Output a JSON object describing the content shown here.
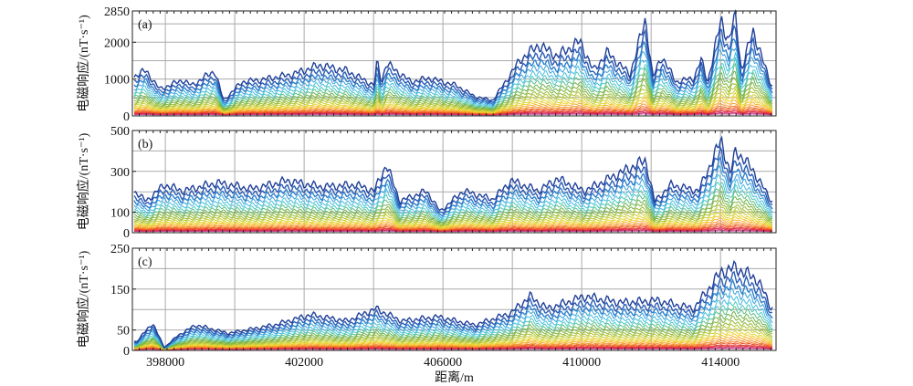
{
  "chart_data": [
    {
      "panel_label": "(a)",
      "type": "line",
      "ylabel": "电磁响应/(nT·s⁻¹)",
      "ylim": [
        0,
        2850
      ],
      "yticks": [
        0,
        1000,
        2000,
        2850
      ],
      "ygrid": [
        500,
        1000,
        1500,
        2000,
        2500
      ],
      "envelope_x": [
        397050,
        397180,
        397440,
        397840,
        398500,
        398760,
        399420,
        399680,
        400210,
        400730,
        401650,
        402440,
        403230,
        404020,
        404100,
        404230,
        404370,
        405080,
        405600,
        406390,
        406920,
        407440,
        408230,
        408760,
        409290,
        409950,
        410340,
        410730,
        411390,
        411840,
        412050,
        412310,
        412710,
        413230,
        413440,
        413630,
        414020,
        414230,
        414440,
        414600,
        414940,
        415210,
        415470,
        415600
      ],
      "envelope_y": [
        1000,
        1100,
        1200,
        700,
        950,
        800,
        1200,
        400,
        900,
        950,
        1100,
        1350,
        1200,
        800,
        1450,
        900,
        1400,
        900,
        1000,
        800,
        500,
        400,
        1500,
        1900,
        1600,
        2000,
        1200,
        1700,
        1100,
        2600,
        1000,
        1600,
        900,
        1000,
        1500,
        900,
        2600,
        2000,
        2700,
        1200,
        2300,
        1500,
        800,
        750
      ]
    },
    {
      "panel_label": "(b)",
      "type": "line",
      "ylabel": "电磁响应/(nT·s⁻¹)",
      "ylim": [
        0,
        500
      ],
      "yticks": [
        0,
        100,
        300,
        500
      ],
      "ygrid": [
        100,
        200,
        300,
        400
      ],
      "envelope_x": [
        397050,
        397180,
        397440,
        397970,
        398500,
        399500,
        400500,
        401500,
        402500,
        403500,
        404020,
        404370,
        404760,
        405530,
        405920,
        406580,
        407440,
        407970,
        408760,
        409290,
        410080,
        411840,
        412100,
        412580,
        413370,
        414020,
        414280,
        414440,
        414940,
        415470,
        415600
      ],
      "envelope_y": [
        200,
        190,
        150,
        230,
        200,
        240,
        210,
        250,
        220,
        230,
        200,
        330,
        150,
        200,
        100,
        200,
        160,
        250,
        200,
        260,
        200,
        350,
        150,
        230,
        200,
        450,
        280,
        400,
        300,
        150,
        140
      ]
    },
    {
      "panel_label": "(c)",
      "type": "line",
      "ylabel": "电磁响应/(nT·s⁻¹)",
      "ylim": [
        0,
        250
      ],
      "yticks": [
        0,
        50,
        150,
        250
      ],
      "ygrid": [
        50,
        100,
        150,
        200
      ],
      "envelope_x": [
        397050,
        397180,
        397630,
        397970,
        398370,
        398890,
        399810,
        401130,
        402180,
        403230,
        404070,
        404810,
        405860,
        406920,
        407970,
        408500,
        409020,
        410080,
        411130,
        412180,
        413230,
        414020,
        414440,
        415080,
        415470,
        415600
      ],
      "envelope_y": [
        20,
        20,
        65,
        5,
        35,
        60,
        40,
        60,
        85,
        70,
        100,
        70,
        80,
        60,
        90,
        130,
        100,
        130,
        115,
        120,
        100,
        190,
        200,
        170,
        100,
        110
      ]
    }
  ],
  "x_axis": {
    "label": "距离/m",
    "xlim": [
      397050,
      415600
    ],
    "ticks": [
      398000,
      402000,
      406000,
      410000,
      414000
    ],
    "xgrid": [
      398000,
      400000,
      402000,
      404000,
      406000,
      408000,
      410000,
      412000,
      414000
    ]
  },
  "series_scales": [
    1,
    0.88,
    0.78,
    0.7,
    0.62,
    0.55,
    0.49,
    0.43,
    0.38,
    0.33,
    0.29,
    0.25,
    0.21,
    0.18,
    0.15,
    0.12,
    0.095,
    0.075,
    0.055,
    0.04,
    0.025,
    0.012
  ],
  "series_colors": [
    "#1f3f99",
    "#2a5db5",
    "#2e7fcc",
    "#3aa0d8",
    "#45bde0",
    "#4fc9c0",
    "#5bbf8a",
    "#6bb34f",
    "#7fb33a",
    "#96bb34",
    "#b0c434",
    "#c9cf33",
    "#e0d431",
    "#f2cc2c",
    "#f6b02a",
    "#f69227",
    "#f27424",
    "#ec5524",
    "#e53a2f",
    "#dd2b48",
    "#d4306e",
    "#c94a9b"
  ]
}
